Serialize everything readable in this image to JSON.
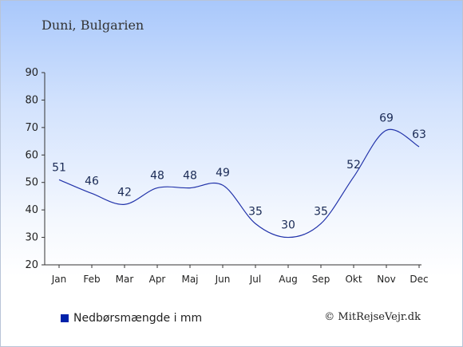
{
  "chart_data": {
    "type": "line",
    "title": "Duni, Bulgarien",
    "categories": [
      "Jan",
      "Feb",
      "Mar",
      "Apr",
      "Maj",
      "Jun",
      "Jul",
      "Aug",
      "Sep",
      "Okt",
      "Nov",
      "Dec"
    ],
    "series": [
      {
        "name": "Nedbørsmængde i mm",
        "values": [
          51,
          46,
          42,
          48,
          48,
          49,
          35,
          30,
          35,
          52,
          69,
          63
        ]
      }
    ],
    "ylim": [
      20,
      90
    ],
    "yticks": [
      20,
      30,
      40,
      50,
      60,
      70,
      80,
      90
    ],
    "grid": false,
    "legend_position": "bottom-left",
    "line_color": "#2233aa",
    "marker_color": "#0022aa"
  },
  "copyright": "© MitRejseVejr.dk"
}
